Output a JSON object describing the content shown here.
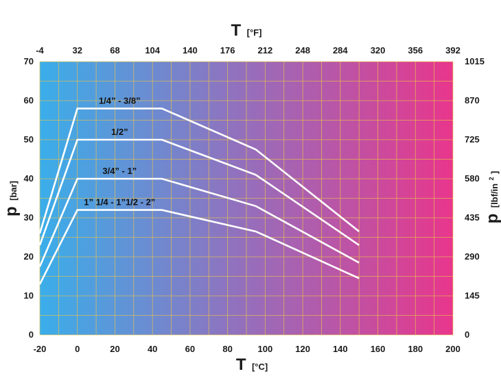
{
  "chart_data": {
    "type": "line",
    "x_axis_bottom": {
      "symbol": "T",
      "unit": "[°C]",
      "range": [
        -20,
        200
      ],
      "ticks": [
        "-20",
        "0",
        "20",
        "40",
        "60",
        "80",
        "100",
        "120",
        "140",
        "160",
        "180",
        "200"
      ]
    },
    "x_axis_top": {
      "symbol": "T",
      "unit": "[°F]",
      "range": [
        -4,
        392
      ],
      "ticks": [
        "-4",
        "32",
        "68",
        "104",
        "140",
        "176",
        "212",
        "248",
        "284",
        "320",
        "356",
        "392"
      ]
    },
    "y_axis_left": {
      "symbol": "p",
      "unit": "[bar]",
      "range": [
        0,
        70
      ],
      "ticks": [
        "0",
        "10",
        "20",
        "30",
        "40",
        "50",
        "60",
        "70"
      ]
    },
    "y_axis_right": {
      "symbol": "p",
      "unit_main": "[lbf/in",
      "unit_sup": "2",
      "unit_end": "]",
      "range": [
        0,
        1015
      ],
      "ticks": [
        "0",
        "145",
        "290",
        "435",
        "580",
        "725",
        "870",
        "1015"
      ]
    },
    "grid": true,
    "colors": {
      "gradient_start": "#3aaeea",
      "gradient_mid": "#8d74c0",
      "gradient_end": "#e8368c",
      "grid_line": "#e8c24a",
      "series_line": "#ffffff",
      "text": "#1a1a1a"
    },
    "series": [
      {
        "name": "1/4” - 3/8”",
        "x": [
          -20,
          0,
          45,
          95,
          150
        ],
        "y": [
          26,
          58,
          58,
          47.5,
          26.5
        ]
      },
      {
        "name": "1/2”",
        "x": [
          -20,
          0,
          45,
          95,
          150
        ],
        "y": [
          23,
          50,
          50,
          41,
          23
        ]
      },
      {
        "name": "3/4” - 1”",
        "x": [
          -20,
          0,
          45,
          95,
          150
        ],
        "y": [
          17.5,
          40,
          40,
          33,
          18.5
        ]
      },
      {
        "name": "1” 1/4 - 1”1/2 - 2”",
        "x": [
          -20,
          0,
          45,
          95,
          150
        ],
        "y": [
          13,
          32,
          32,
          26.5,
          14.5
        ]
      }
    ]
  }
}
